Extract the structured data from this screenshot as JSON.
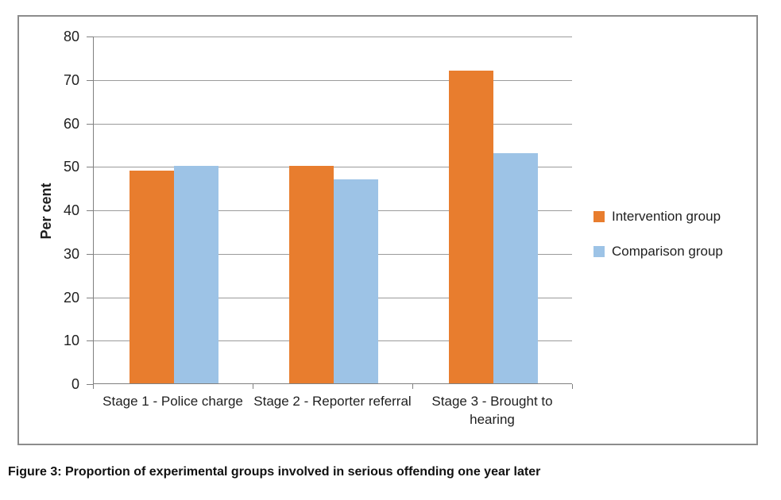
{
  "figure": {
    "caption": "Figure 3: Proportion of experimental groups involved in serious offending one year later"
  },
  "chart_data": {
    "type": "bar",
    "title": "",
    "xlabel": "",
    "ylabel": "Per cent",
    "categories": [
      "Stage 1 - Police charge",
      "Stage 2 - Reporter referral",
      "Stage 3 - Brought to hearing"
    ],
    "series": [
      {
        "name": "Intervention group",
        "color": "#E87D2E",
        "values": [
          49,
          50,
          72
        ]
      },
      {
        "name": "Comparison group",
        "color": "#9DC3E6",
        "values": [
          50,
          47,
          53
        ]
      }
    ],
    "ylim": [
      0,
      80
    ],
    "yticks": [
      0,
      10,
      20,
      30,
      40,
      50,
      60,
      70,
      80
    ],
    "grid": true,
    "legend_position": "right",
    "colors": {
      "gridline": "#9B9B9B",
      "axis": "#808080",
      "border": "#8C8C8C",
      "text": "#1F1F1F"
    }
  }
}
